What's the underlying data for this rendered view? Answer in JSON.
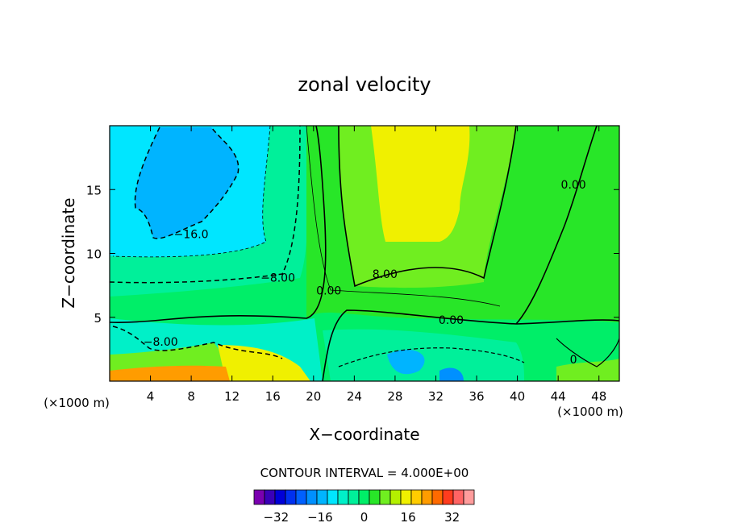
{
  "chart_data": {
    "type": "contour",
    "title": "zonal velocity",
    "xlabel": "X−coordinate",
    "ylabel": "Z−coordinate",
    "x_unit_left": "(×1000 m)",
    "x_unit_right": "(×1000 m)",
    "xlim": [
      0,
      50
    ],
    "ylim": [
      0,
      20
    ],
    "x_ticks": [
      4,
      8,
      12,
      16,
      20,
      24,
      28,
      32,
      36,
      40,
      44,
      48
    ],
    "x_tick_labels": [
      "4",
      "8",
      "12",
      "16",
      "20",
      "24",
      "28",
      "32",
      "36",
      "40",
      "44",
      "48"
    ],
    "y_ticks": [
      5,
      10,
      15
    ],
    "y_tick_labels": [
      "5",
      "10",
      "15"
    ],
    "contour_interval_text": "CONTOUR INTERVAL = 4.000E+00",
    "contour_labels": [
      {
        "text": "−16.0",
        "x": 8,
        "y": 11.5
      },
      {
        "text": "−8.00",
        "x": 16.5,
        "y": 8.1
      },
      {
        "text": "−8.00",
        "x": 5,
        "y": 3.1
      },
      {
        "text": "0.00",
        "x": 21.5,
        "y": 7.1
      },
      {
        "text": "8.00",
        "x": 27,
        "y": 8.4
      },
      {
        "text": "0.00",
        "x": 33.5,
        "y": 4.8
      },
      {
        "text": "0.00",
        "x": 45.5,
        "y": 15.4
      },
      {
        "text": "0",
        "x": 45.5,
        "y": 1.7
      }
    ],
    "colorbar": {
      "levels": [
        -40,
        -36,
        -32,
        -28,
        -24,
        -20,
        -16,
        -12,
        -8,
        -4,
        0,
        4,
        8,
        12,
        16,
        20,
        24,
        28,
        32,
        36,
        40
      ],
      "colors": [
        "#7a00b0",
        "#3a00b8",
        "#0000d8",
        "#0030f0",
        "#0060ff",
        "#0090ff",
        "#00b4ff",
        "#00e6ff",
        "#00f0c8",
        "#00f09a",
        "#00ee68",
        "#28e628",
        "#70ee20",
        "#b4f000",
        "#f0f000",
        "#ffcc00",
        "#ff9c00",
        "#ff6a00",
        "#ff3c1e",
        "#ff6464",
        "#ff9c9c"
      ],
      "tick_values": [
        -32,
        -16,
        0,
        16,
        32
      ],
      "tick_labels": [
        "−32",
        "−16",
        "0",
        "16",
        "32"
      ]
    }
  }
}
